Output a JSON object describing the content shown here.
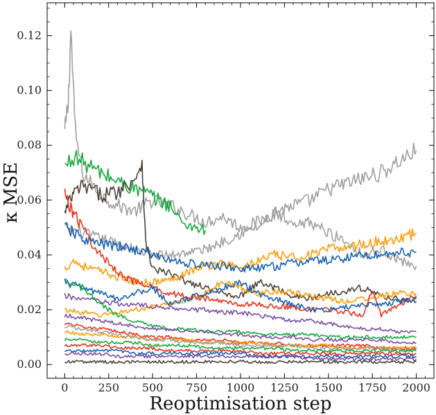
{
  "chart_data": {
    "type": "line",
    "title": "",
    "xlabel": "Reoptimisation step",
    "ylabel": "κ MSE",
    "xlim": [
      -100,
      2100
    ],
    "ylim": [
      -0.005,
      0.132
    ],
    "xticks": [
      0,
      250,
      500,
      750,
      1000,
      1250,
      1500,
      1750,
      2000
    ],
    "yticks": [
      0.0,
      0.02,
      0.04,
      0.06,
      0.08,
      0.1,
      0.12
    ],
    "xtick_labels": [
      "0",
      "250",
      "500",
      "750",
      "1000",
      "1250",
      "1500",
      "1750",
      "2000"
    ],
    "ytick_labels": [
      "0.00",
      "0.02",
      "0.04",
      "0.06",
      "0.08",
      "0.10",
      "0.12"
    ],
    "grid": false,
    "legend": "none",
    "series": [
      {
        "color": "#9e9e9e",
        "x": [
          0,
          20,
          35,
          60,
          100,
          200,
          300,
          400,
          500,
          600,
          700,
          800,
          900,
          1000,
          1100,
          1200,
          1300,
          1400,
          1500,
          1600,
          1700,
          1800,
          1900,
          2000
        ],
        "y": [
          0.085,
          0.095,
          0.122,
          0.085,
          0.07,
          0.062,
          0.058,
          0.056,
          0.06,
          0.058,
          0.055,
          0.052,
          0.054,
          0.05,
          0.052,
          0.056,
          0.058,
          0.06,
          0.064,
          0.066,
          0.068,
          0.07,
          0.074,
          0.078
        ]
      },
      {
        "color": "#a0a0a0",
        "x": [
          0,
          100,
          200,
          300,
          400,
          500,
          600,
          700,
          800,
          900,
          1000,
          1100,
          1200,
          1300,
          1400,
          1500,
          1600,
          1700,
          1800,
          1900,
          2000
        ],
        "y": [
          0.05,
          0.048,
          0.046,
          0.044,
          0.042,
          0.04,
          0.04,
          0.041,
          0.042,
          0.045,
          0.048,
          0.05,
          0.055,
          0.05,
          0.052,
          0.048,
          0.045,
          0.04,
          0.042,
          0.038,
          0.036
        ]
      },
      {
        "color": "#14a83c",
        "x": [
          0,
          50,
          100,
          150,
          200,
          300,
          400,
          450,
          500,
          600,
          650,
          700,
          800
        ],
        "y": [
          0.072,
          0.076,
          0.074,
          0.072,
          0.07,
          0.067,
          0.064,
          0.063,
          0.061,
          0.058,
          0.053,
          0.051,
          0.049
        ]
      },
      {
        "color": "#4a4038",
        "x": [
          0,
          30,
          60,
          100,
          150,
          200,
          300,
          400,
          440,
          460,
          500,
          600,
          700,
          800,
          900,
          1000,
          1100,
          1200,
          1300,
          1400,
          1500,
          1600,
          1700,
          1800,
          1900,
          2000
        ],
        "y": [
          0.055,
          0.06,
          0.063,
          0.065,
          0.064,
          0.062,
          0.063,
          0.068,
          0.074,
          0.045,
          0.035,
          0.033,
          0.03,
          0.028,
          0.026,
          0.025,
          0.03,
          0.028,
          0.025,
          0.024,
          0.026,
          0.027,
          0.028,
          0.025,
          0.024,
          0.023
        ]
      },
      {
        "color": "#ff9a00",
        "x": [
          0,
          50,
          100,
          200,
          300,
          400,
          500,
          600,
          700,
          800,
          900,
          1000,
          1100,
          1200,
          1300,
          1400,
          1500,
          1600,
          1700,
          1800,
          1900,
          2000
        ],
        "y": [
          0.035,
          0.038,
          0.036,
          0.034,
          0.032,
          0.03,
          0.03,
          0.031,
          0.034,
          0.036,
          0.037,
          0.035,
          0.038,
          0.04,
          0.039,
          0.04,
          0.042,
          0.043,
          0.044,
          0.045,
          0.046,
          0.048
        ]
      },
      {
        "color": "#1560b0",
        "x": [
          0,
          50,
          100,
          200,
          300,
          400,
          500,
          600,
          700,
          800,
          900,
          1000,
          1100,
          1200,
          1300,
          1400,
          1500,
          1600,
          1700,
          1800,
          1900,
          2000
        ],
        "y": [
          0.05,
          0.048,
          0.046,
          0.044,
          0.043,
          0.042,
          0.04,
          0.038,
          0.037,
          0.036,
          0.036,
          0.035,
          0.035,
          0.036,
          0.037,
          0.038,
          0.038,
          0.039,
          0.04,
          0.04,
          0.041,
          0.041
        ]
      },
      {
        "color": "#ff9a00",
        "x": [
          0,
          100,
          200,
          300,
          400,
          500,
          600,
          700,
          800,
          900,
          1000,
          1100,
          1200,
          1300,
          1400,
          1500,
          1600,
          1700,
          1800,
          1900,
          2000
        ],
        "y": [
          0.02,
          0.019,
          0.018,
          0.019,
          0.02,
          0.021,
          0.022,
          0.024,
          0.026,
          0.03,
          0.028,
          0.026,
          0.027,
          0.026,
          0.025,
          0.024,
          0.023,
          0.024,
          0.025,
          0.026,
          0.026
        ]
      },
      {
        "color": "#e8301a",
        "x": [
          0,
          30,
          60,
          100,
          150,
          200,
          300,
          400,
          500,
          600,
          700,
          800,
          900,
          1000,
          1100,
          1200,
          1300,
          1400,
          1500,
          1600,
          1700,
          1750,
          1800,
          1900,
          2000
        ],
        "y": [
          0.062,
          0.058,
          0.054,
          0.05,
          0.045,
          0.04,
          0.034,
          0.03,
          0.028,
          0.026,
          0.025,
          0.024,
          0.023,
          0.022,
          0.022,
          0.021,
          0.021,
          0.02,
          0.02,
          0.019,
          0.018,
          0.028,
          0.018,
          0.022,
          0.025
        ]
      },
      {
        "color": "#1560b0",
        "x": [
          0,
          100,
          200,
          300,
          400,
          500,
          600,
          700,
          800,
          900,
          1000,
          1100,
          1200,
          1300,
          1400,
          1500,
          1600,
          1700,
          1800,
          1900,
          2000
        ],
        "y": [
          0.03,
          0.028,
          0.026,
          0.024,
          0.026,
          0.028,
          0.022,
          0.024,
          0.026,
          0.028,
          0.03,
          0.026,
          0.024,
          0.022,
          0.02,
          0.02,
          0.021,
          0.022,
          0.022,
          0.023,
          0.024
        ]
      },
      {
        "color": "#7a4ea0",
        "x": [
          0,
          100,
          200,
          300,
          400,
          500,
          600,
          700,
          800,
          900,
          1000,
          1100,
          1200,
          1300,
          1400,
          1500,
          1600,
          1700,
          1800,
          1900,
          2000
        ],
        "y": [
          0.025,
          0.024,
          0.023,
          0.022,
          0.022,
          0.021,
          0.021,
          0.02,
          0.02,
          0.019,
          0.019,
          0.018,
          0.017,
          0.016,
          0.016,
          0.015,
          0.014,
          0.013,
          0.013,
          0.012,
          0.012
        ]
      },
      {
        "color": "#14a83c",
        "x": [
          0,
          100,
          200,
          300,
          400,
          500,
          600,
          700,
          800,
          900,
          1000,
          1100,
          1200,
          1300,
          1400,
          1500,
          1600,
          1700,
          1800,
          1900,
          2000
        ],
        "y": [
          0.03,
          0.028,
          0.022,
          0.018,
          0.016,
          0.014,
          0.013,
          0.013,
          0.012,
          0.012,
          0.012,
          0.011,
          0.011,
          0.011,
          0.011,
          0.01,
          0.01,
          0.01,
          0.01,
          0.01,
          0.01
        ]
      },
      {
        "color": "#7a4ea0",
        "x": [
          0,
          100,
          200,
          300,
          400,
          500,
          600,
          700,
          800,
          900,
          1000,
          1100,
          1200,
          1300,
          1400,
          1500,
          1600,
          1700,
          1800,
          1900,
          2000
        ],
        "y": [
          0.018,
          0.017,
          0.016,
          0.015,
          0.014,
          0.013,
          0.013,
          0.012,
          0.012,
          0.011,
          0.011,
          0.01,
          0.01,
          0.01,
          0.009,
          0.009,
          0.009,
          0.009,
          0.009,
          0.008,
          0.008
        ]
      },
      {
        "color": "#e8301a",
        "x": [
          0,
          100,
          200,
          300,
          400,
          500,
          600,
          700,
          800,
          900,
          1000,
          1100,
          1200,
          1300,
          1400,
          1500,
          1600,
          1700,
          1800,
          1900,
          2000
        ],
        "y": [
          0.015,
          0.014,
          0.013,
          0.012,
          0.011,
          0.01,
          0.01,
          0.009,
          0.009,
          0.009,
          0.008,
          0.008,
          0.008,
          0.007,
          0.007,
          0.007,
          0.007,
          0.007,
          0.006,
          0.006,
          0.006
        ]
      },
      {
        "color": "#ff9a00",
        "x": [
          0,
          100,
          200,
          300,
          400,
          500,
          600,
          700,
          800,
          900,
          1000,
          1100,
          1200,
          1300,
          1400,
          1500,
          1600,
          1700,
          1800,
          1900,
          2000
        ],
        "y": [
          0.012,
          0.011,
          0.011,
          0.01,
          0.01,
          0.009,
          0.009,
          0.009,
          0.008,
          0.008,
          0.008,
          0.008,
          0.007,
          0.007,
          0.007,
          0.007,
          0.006,
          0.006,
          0.006,
          0.006,
          0.006
        ]
      },
      {
        "color": "#9e9e9e",
        "x": [
          0,
          100,
          200,
          300,
          400,
          500,
          600,
          700,
          800,
          900,
          1000,
          1100,
          1200,
          1300,
          1400,
          1500,
          1600,
          1700,
          1800,
          1900,
          2000
        ],
        "y": [
          0.014,
          0.013,
          0.012,
          0.011,
          0.01,
          0.009,
          0.009,
          0.008,
          0.008,
          0.008,
          0.007,
          0.007,
          0.007,
          0.007,
          0.006,
          0.006,
          0.006,
          0.006,
          0.006,
          0.005,
          0.005
        ]
      },
      {
        "color": "#14a83c",
        "x": [
          0,
          100,
          200,
          300,
          400,
          500,
          600,
          700,
          800,
          900,
          1000,
          1100,
          1200,
          1300,
          1400,
          1500,
          1600,
          1700,
          1800,
          1900,
          2000
        ],
        "y": [
          0.009,
          0.009,
          0.008,
          0.008,
          0.008,
          0.007,
          0.007,
          0.007,
          0.006,
          0.006,
          0.006,
          0.006,
          0.006,
          0.005,
          0.005,
          0.005,
          0.005,
          0.005,
          0.005,
          0.005,
          0.005
        ]
      },
      {
        "color": "#e8301a",
        "x": [
          0,
          100,
          200,
          300,
          400,
          500,
          600,
          700,
          800,
          900,
          1000,
          1100,
          1200,
          1300,
          1400,
          1500,
          1600,
          1700,
          1800,
          1900,
          2000
        ],
        "y": [
          0.007,
          0.007,
          0.007,
          0.006,
          0.006,
          0.006,
          0.005,
          0.005,
          0.005,
          0.005,
          0.005,
          0.004,
          0.004,
          0.004,
          0.004,
          0.004,
          0.004,
          0.004,
          0.004,
          0.004,
          0.004
        ]
      },
      {
        "color": "#1560b0",
        "x": [
          0,
          100,
          200,
          300,
          400,
          500,
          600,
          700,
          800,
          900,
          1000,
          1100,
          1200,
          1300,
          1400,
          1500,
          1600,
          1700,
          1800,
          1900,
          2000
        ],
        "y": [
          0.005,
          0.005,
          0.005,
          0.005,
          0.004,
          0.004,
          0.004,
          0.004,
          0.004,
          0.004,
          0.004,
          0.003,
          0.003,
          0.003,
          0.003,
          0.003,
          0.003,
          0.003,
          0.003,
          0.003,
          0.003
        ]
      },
      {
        "color": "#7a4ea0",
        "x": [
          0,
          100,
          200,
          300,
          400,
          500,
          600,
          700,
          800,
          900,
          1000,
          1100,
          1200,
          1300,
          1400,
          1500,
          1600,
          1700,
          1800,
          1900,
          2000
        ],
        "y": [
          0.004,
          0.004,
          0.004,
          0.003,
          0.003,
          0.003,
          0.003,
          0.003,
          0.003,
          0.003,
          0.003,
          0.003,
          0.003,
          0.003,
          0.002,
          0.002,
          0.002,
          0.002,
          0.002,
          0.002,
          0.002
        ]
      },
      {
        "color": "#4a4038",
        "x": [
          0,
          100,
          200,
          300,
          400,
          500,
          600,
          700,
          800,
          900,
          1000,
          1100,
          1200,
          1300,
          1400,
          1500,
          1600,
          1700,
          1800,
          1900,
          2000
        ],
        "y": [
          0.001,
          0.001,
          0.001,
          0.001,
          0.001,
          0.001,
          0.001,
          0.001,
          0.001,
          0.001,
          0.001,
          0.001,
          0.001,
          0.001,
          0.001,
          0.001,
          0.001,
          0.001,
          0.001,
          0.001,
          0.001
        ]
      }
    ]
  }
}
